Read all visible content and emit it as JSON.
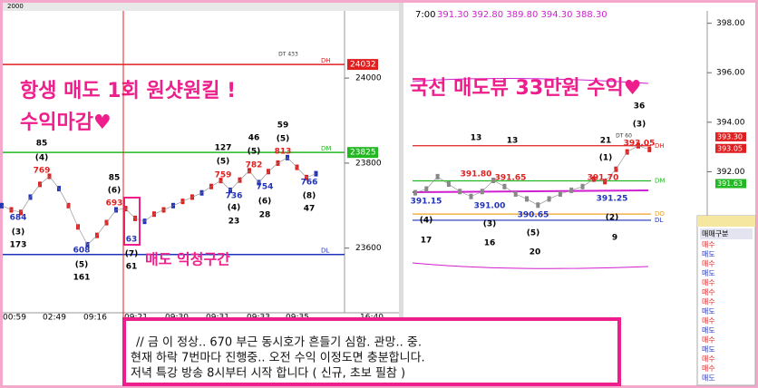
{
  "toolbar": {
    "field": "2000"
  },
  "left_chart": {
    "ylim": [
      23448,
      24158
    ],
    "yticks": [
      24000,
      23800,
      23600
    ],
    "levels": [
      {
        "name": "DH",
        "value": 24032,
        "color": "#e02020"
      },
      {
        "name": "DM",
        "value": 23825,
        "color": "#22b822"
      },
      {
        "name": "DL",
        "value": 23585,
        "color": "#2233bb"
      }
    ],
    "times": [
      "00:59",
      "02:49",
      "09:16",
      "09:21",
      "09:30",
      "09:31",
      "09:33",
      "09:35",
      "16:40"
    ],
    "prices": [
      23700,
      23690,
      23684,
      23720,
      23750,
      23769,
      23740,
      23700,
      23650,
      23608,
      23630,
      23660,
      23690,
      23693,
      23670,
      23663,
      23680,
      23690,
      23700,
      23710,
      23720,
      23730,
      23745,
      23759,
      23736,
      23760,
      23782,
      23754,
      23780,
      23800,
      23813,
      23790,
      23766,
      23775
    ],
    "annotations": [
      "DT 433",
      "85",
      "(4)",
      "769",
      "684",
      "(3)",
      "173",
      "608",
      "(5)",
      "161",
      "85",
      "(6)",
      "693",
      "63",
      "(7)",
      "61",
      "127",
      "(5)",
      "759",
      "736",
      "(4)",
      "23",
      "46",
      "(5)",
      "782",
      "754",
      "(6)",
      "28",
      "59",
      "(5)",
      "813",
      "766",
      "(8)",
      "47"
    ],
    "headline": [
      "항생 매도 1회 원샷원킬 !",
      "수익마감♥"
    ],
    "zone_note": "매도 익청구간"
  },
  "right_chart": {
    "legend": "7:00",
    "ohlc": "391.30  392.80  389.80  394.30  388.30",
    "ylim": [
      386.3,
      398.5
    ],
    "yticks": [
      {
        "value": 398,
        "label": "398.00"
      },
      {
        "value": 396,
        "label": "396.00"
      },
      {
        "value": 394,
        "label": "394.00"
      },
      {
        "value": 392,
        "label": "392.00"
      }
    ],
    "current": {
      "value": 393.3,
      "label": "393.30"
    },
    "levels": [
      {
        "name": "DH",
        "value": 393.05,
        "color": "#e02020"
      },
      {
        "name": "DM",
        "value": 391.63,
        "color": "#22b822"
      },
      {
        "name": "DO",
        "value": 390.29,
        "color": "#f0a020"
      },
      {
        "name": "DL",
        "value": 390.04,
        "color": "#2233bb"
      }
    ],
    "prices": [
      391.15,
      391.3,
      391.8,
      391.5,
      391.2,
      391.0,
      391.2,
      391.65,
      391.4,
      391.1,
      390.9,
      390.65,
      390.9,
      391.1,
      391.25,
      391.4,
      391.7,
      391.6,
      392.1,
      392.8,
      393.05,
      392.9
    ],
    "annotations": [
      "36",
      "(3)",
      "13",
      "13",
      "21",
      "DT 60",
      "393.05",
      "(1)",
      "391.80",
      "391.65",
      "391.70",
      "391.15",
      "391.00",
      "391.25",
      "390.65",
      "(4)",
      "(3)",
      "(5)",
      "(2)",
      "17",
      "16",
      "20",
      "9"
    ],
    "headline": "국선 매도뷰 33만원 수익♥"
  },
  "side_panel": {
    "header": "매매구분",
    "rows": [
      "매수",
      "매도",
      "매수",
      "매도",
      "매수",
      "매수",
      "매수",
      "매도",
      "매수",
      "매도",
      "매수",
      "매도",
      "매수",
      "매수",
      "매도"
    ]
  },
  "message": [
    "// 금 이 정상.. 670 부근 동시호가 흔들기 심함. 관망.. 중.",
    "현재 하락 7번마다 진행중..  오전 수익 이정도면 충분합니다.",
    "저녁 특강 방송 8시부터 시작 합니다 ( 신규, 초보 필참 )"
  ]
}
